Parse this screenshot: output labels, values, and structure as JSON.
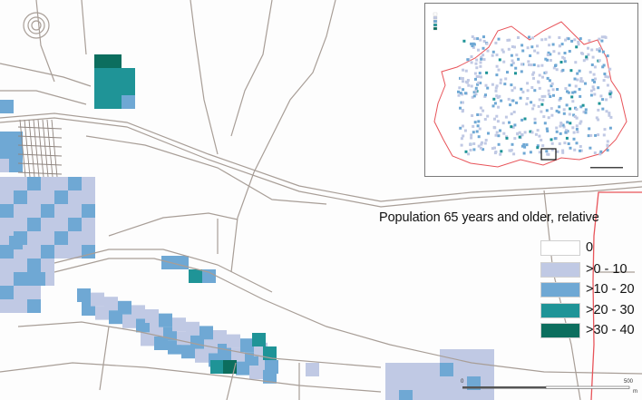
{
  "legend": {
    "title": "Population 65 years and older, relative",
    "classes": [
      {
        "label": "0",
        "color": "#ffffff"
      },
      {
        "label": ">0 - 10",
        "color": "#c0c9e4"
      },
      {
        "label": ">10 - 20",
        "color": "#6fa8d4"
      },
      {
        "label": ">20 - 30",
        "color": "#1f9497"
      },
      {
        "label": ">30 - 40",
        "color": "#0c6e5e"
      }
    ]
  },
  "scalebar": {
    "start_label": "0",
    "end_label": "500",
    "unit": "m"
  },
  "colors": {
    "road": "#a89e97",
    "boundary": "#e8545a",
    "inset_frame": "#7a7a7a"
  }
}
